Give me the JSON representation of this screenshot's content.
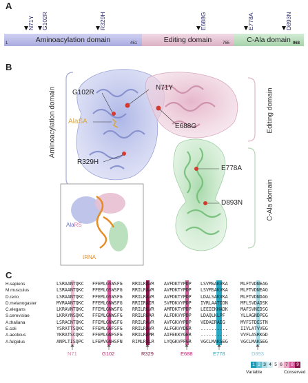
{
  "panel_a": {
    "letter": "A",
    "mutations": [
      "N71Y",
      "G102R",
      "R329H",
      "E688G",
      "E778A",
      "D893N"
    ],
    "domains": [
      {
        "label": "Aminoacylation domain",
        "end": "451",
        "color": "#c1c2ea"
      },
      {
        "label": "Editing domain",
        "end": "755",
        "color": "#e8c9d7"
      },
      {
        "label": "C-Ala domain",
        "end": "968",
        "color": "#bfe0c2"
      }
    ],
    "start": "1"
  },
  "panel_b": {
    "letter": "B",
    "labels": {
      "g102r": "G102R",
      "n71y": "N71Y",
      "alasa": "AlaSA",
      "e688g": "E688G",
      "r329h": "R329H",
      "e778a": "E778A",
      "d893n": "D893N"
    },
    "side_labels": {
      "aminoacylation": "Aminoacylation domain",
      "editing": "Editing domain",
      "cala": "C-Ala domain"
    },
    "inset": {
      "alars_prefix": "Ala",
      "alars_suffix": "RS",
      "trna": "tRNA"
    }
  },
  "panel_c": {
    "letter": "C",
    "species": [
      "H.sapiens",
      "M.musculus",
      "D.rerio",
      "D.melanogaster",
      "C.elegans",
      "S.cerevisiae",
      "A.thaliana",
      "E.coli",
      "A.aeolicus",
      "A.fulgidus"
    ],
    "blocks": [
      [
        "LSRAANTQKC",
        "LSRAANTQKC",
        "LSRAANTQKC",
        "MVRAANTQKC",
        "LKRAVNTQKC",
        "LKRAYNSQKC",
        "LSRACNTQKC",
        "YSRATTSQKC",
        "YKRATSCQKC",
        "ANPLTISQPC"
      ],
      [
        "FFEMLGSWSFG",
        "FFEMLGSWSFG",
        "FFEMLGSWSFG",
        "FFEMLGNWSFG",
        "FFEMLGNWSFG",
        "FFEMLGNWSFG",
        "FFEMLGNWSFG",
        "FFEMLGNFSFG",
        "FFEMLGNFSFG",
        "LFEMVGNHSFN"
      ],
      [
        "RRILRAVR",
        "RRILRAVR",
        "RRILRAVR",
        "RRIIRAIR",
        "RRILRGVR",
        "RRILRGAR",
        "RRILRAVR",
        "RRILRAVR",
        "RRILRAMR",
        "RIMLRSLR"
      ],
      [
        "AVFDKTYPDP",
        "AVFDKTYPDP",
        "AVFDKTYPDP",
        "SVFDKVYPDP",
        "AMFDKTYPDP",
        "ALFDKVYPDP",
        "AVFGKVYPDP",
        "ALFGKVYDER",
        "AIFEKKYGER",
        "LYQGKVPFGR"
      ],
      [
        "LSVMSAKVKA",
        "LSVMSAKVKA",
        "LDALSAKVKA",
        "IVRLAATIDN",
        "LEEIEKHADK",
        "LDAQLKLPF",
        "VEDAERAEG",
        "..........",
        "..........",
        "VGCLMAKGEG"
      ],
      [
        "MLFTVDNEAG",
        "MLFTVDNEAG",
        "MLFTVDNDAG",
        "MFLSVDADSK",
        "MAFSVNEDSG",
        "YLLAGNDPEG",
        "MVFSTDESTN",
        "IIVLATVVEG",
        "VVFLASRKGD",
        "VGCLMAKGEG"
      ]
    ],
    "positions": [
      "N71",
      "G102",
      "R329",
      "E688",
      "E778",
      "D893"
    ],
    "position_colors": [
      "#d87fa5",
      "#c0206e",
      "#8a1248",
      "#c0206e",
      "#2aa9c4",
      "#7fc8da"
    ],
    "legend": {
      "numbers": [
        "1",
        "2",
        "3",
        "4",
        "5",
        "6",
        "7",
        "8",
        "9"
      ],
      "variable": "Variable",
      "conserved": "Conserved"
    }
  }
}
